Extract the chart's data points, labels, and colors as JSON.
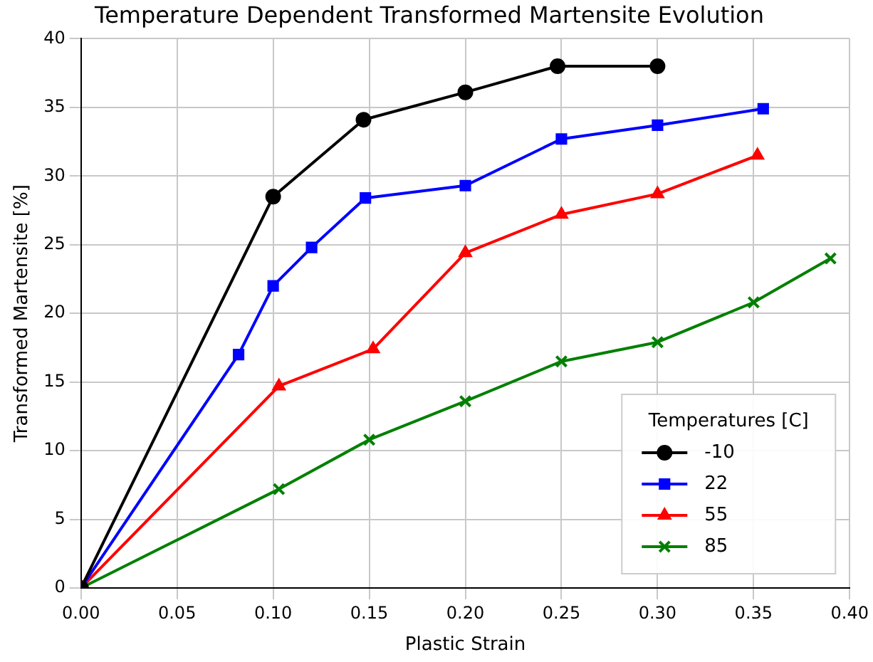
{
  "chart_data": {
    "type": "line",
    "title": "Temperature Dependent Transformed Martensite Evolution",
    "xlabel": "Plastic Strain",
    "ylabel": "Transformed Martensite [%]",
    "legend_title": "Temperatures [C]",
    "legend": "bottom right",
    "grid": true,
    "line_style": "solid",
    "xlim": [
      0,
      0.4
    ],
    "xticks": [
      {
        "value": 0,
        "label": "0.00"
      },
      {
        "value": 0.05,
        "label": "0.05"
      },
      {
        "value": 0.1,
        "label": "0.10"
      },
      {
        "value": 0.15,
        "label": "0.15"
      },
      {
        "value": 0.2,
        "label": "0.20"
      },
      {
        "value": 0.25,
        "label": "0.25"
      },
      {
        "value": 0.3,
        "label": "0.30"
      },
      {
        "value": 0.35,
        "label": "0.35"
      },
      {
        "value": 0.4,
        "label": "0.40"
      }
    ],
    "ylim": [
      0,
      40
    ],
    "yticks": [
      0,
      5,
      10,
      15,
      20,
      25,
      30,
      35,
      40
    ],
    "series": [
      {
        "name": "-10",
        "color": "#000000",
        "marker": "circle",
        "x": [
          0,
          0.1,
          0.147,
          0.2,
          0.248,
          0.3
        ],
        "values": [
          0,
          28.5,
          34.1,
          36.1,
          38,
          38
        ]
      },
      {
        "name": "22",
        "color": "#0000ff",
        "marker": "square",
        "x": [
          0,
          0.082,
          0.1,
          0.12,
          0.148,
          0.2,
          0.25,
          0.3,
          0.355
        ],
        "values": [
          0,
          17,
          22,
          24.8,
          28.4,
          29.3,
          32.7,
          33.7,
          34.9
        ]
      },
      {
        "name": "55",
        "color": "#ff0000",
        "marker": "triangle",
        "x": [
          0,
          0.103,
          0.152,
          0.2,
          0.25,
          0.3,
          0.352
        ],
        "values": [
          0,
          14.7,
          17.4,
          24.4,
          27.2,
          28.7,
          31.5
        ]
      },
      {
        "name": "85",
        "color": "#008000",
        "marker": "cross",
        "x": [
          0,
          0.103,
          0.15,
          0.2,
          0.25,
          0.3,
          0.35,
          0.39
        ],
        "values": [
          0,
          7.2,
          10.8,
          13.6,
          16.5,
          17.9,
          20.8,
          24
        ]
      }
    ]
  }
}
